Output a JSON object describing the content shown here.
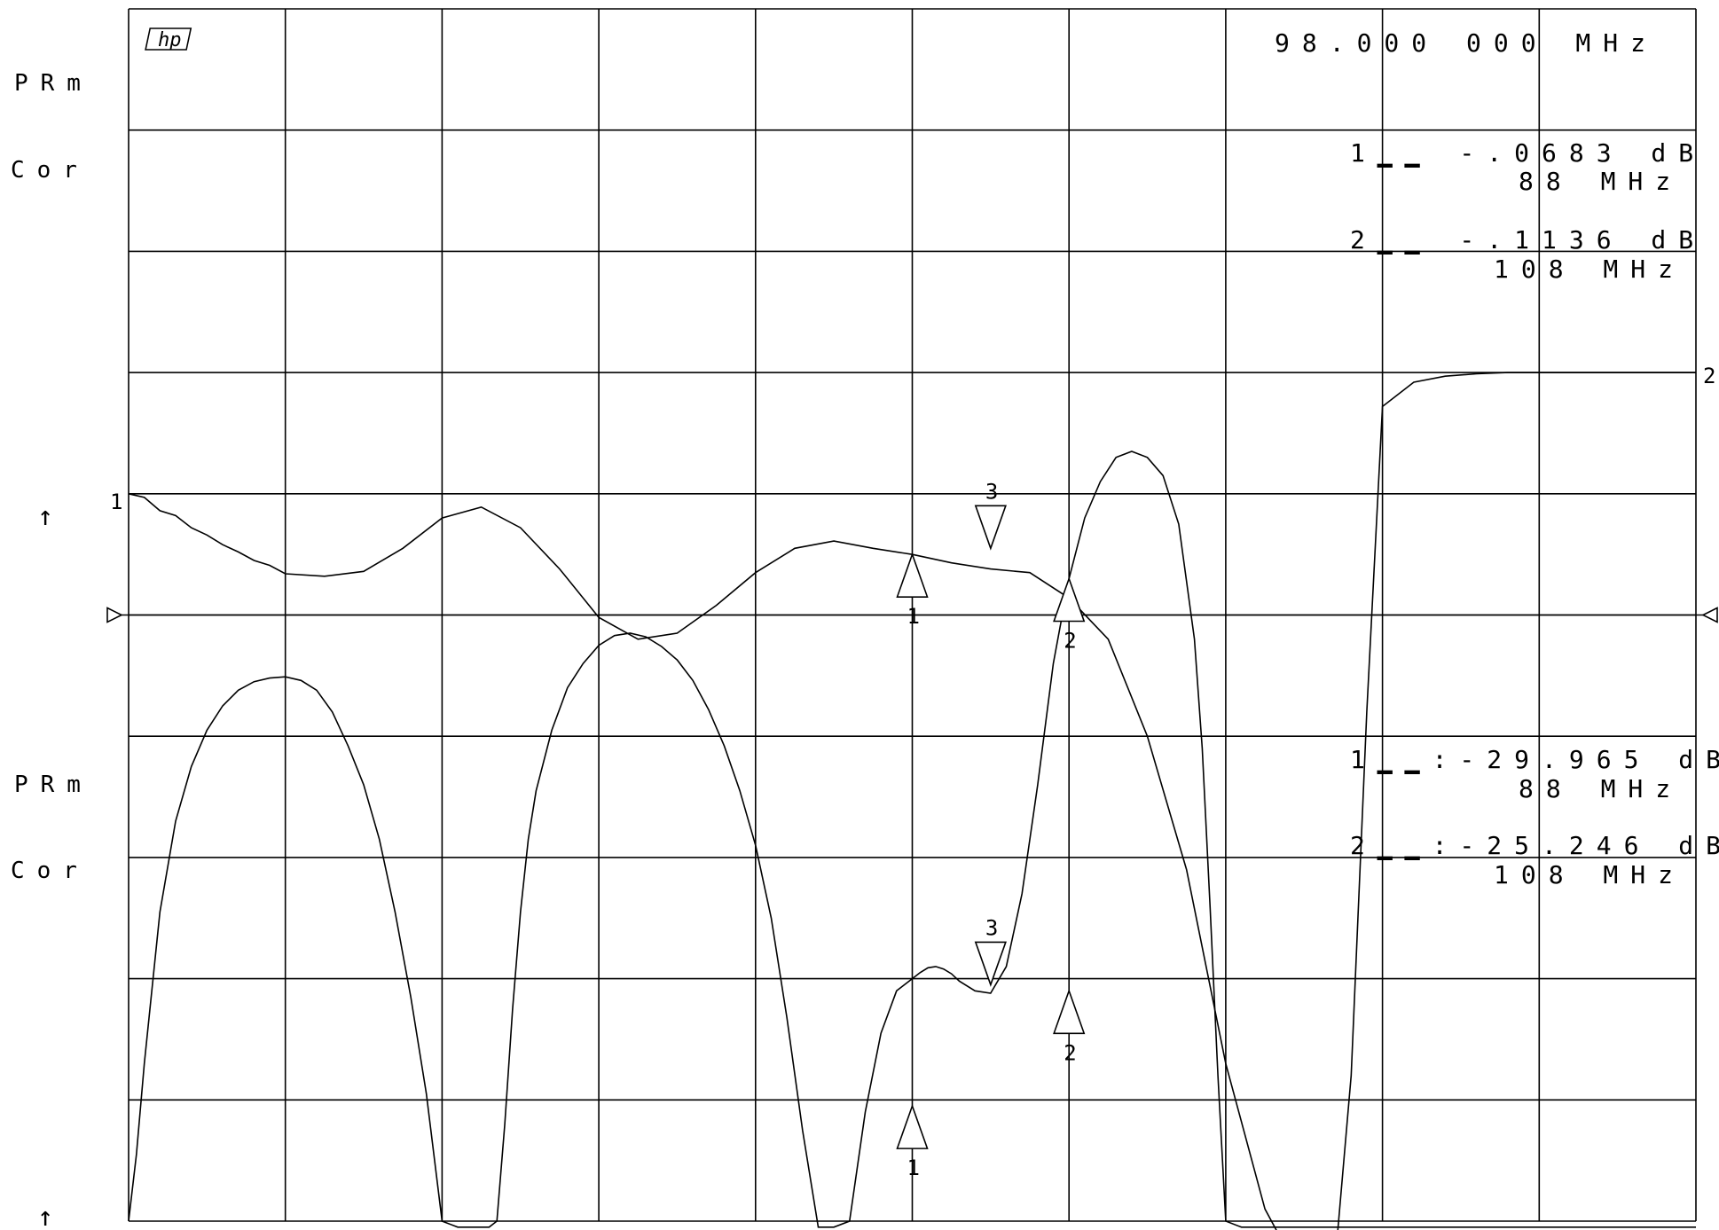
{
  "instrument": {
    "logo_text": "hp",
    "center_frequency": "98.000 000 MHz",
    "upper_channel": {
      "label1": "PRm",
      "label2": "Cor"
    },
    "lower_channel": {
      "label1": "PRm",
      "label2": "Cor"
    },
    "upper_markers": [
      {
        "line1": "1▁▁ -.0683 dB",
        "line2": "88 MHz"
      },
      {
        "line1": "2▁▁ -.1136 dB",
        "line2": "108 MHz"
      }
    ],
    "lower_markers": [
      {
        "line1": "1▁▁:-29.965 dB",
        "line2": "88 MHz"
      },
      {
        "line1": "2▁▁:-25.246 dB",
        "line2": "108 MHz"
      }
    ],
    "trace_labels": {
      "trace1": "1",
      "trace2": "2"
    },
    "marker_glyphs": {
      "m1": "1",
      "m2": "2",
      "m3": "3"
    },
    "reference_arrow": "↑"
  },
  "chart_data": {
    "type": "line",
    "grid": true,
    "x_divisions": 10,
    "y_divisions": 10,
    "series": [
      {
        "x": [
          0,
          0.1,
          0.2,
          0.3,
          0.4,
          0.5,
          0.6,
          0.7,
          0.8,
          0.9,
          1,
          1.25,
          1.5,
          1.75,
          2,
          2.25,
          2.5,
          2.75,
          3,
          3.25,
          3.5,
          3.75,
          4,
          4.25,
          4.5,
          4.75,
          5,
          5.25,
          5.5,
          5.75,
          6,
          6.25,
          6.5,
          6.75,
          7,
          7.25,
          7.5,
          7.6,
          7.7,
          7.8,
          7.9,
          8,
          8.2,
          8.4,
          8.6,
          8.8,
          9,
          9.5,
          10
        ],
        "y": [
          6.0,
          5.97,
          5.86,
          5.82,
          5.72,
          5.66,
          5.58,
          5.52,
          5.45,
          5.41,
          5.34,
          5.32,
          5.36,
          5.55,
          5.8,
          5.89,
          5.72,
          5.38,
          4.98,
          4.8,
          4.85,
          5.08,
          5.35,
          5.55,
          5.61,
          5.55,
          5.5,
          5.43,
          5.38,
          5.35,
          5.14,
          4.8,
          4.0,
          2.9,
          1.3,
          0.1,
          -0.5,
          -0.5,
          -0.3,
          1.2,
          4.2,
          6.72,
          6.92,
          6.97,
          6.99,
          7.0,
          7.0,
          7.0,
          7.0
        ]
      },
      {
        "x": [
          0,
          0.05,
          0.1,
          0.2,
          0.3,
          0.4,
          0.5,
          0.6,
          0.7,
          0.8,
          0.9,
          1,
          1.1,
          1.2,
          1.3,
          1.4,
          1.5,
          1.6,
          1.7,
          1.8,
          1.9,
          2,
          2.1,
          2.2,
          2.3,
          2.35,
          2.4,
          2.45,
          2.5,
          2.55,
          2.6,
          2.7,
          2.8,
          2.9,
          3,
          3.1,
          3.2,
          3.3,
          3.4,
          3.5,
          3.6,
          3.7,
          3.8,
          3.9,
          4,
          4.1,
          4.2,
          4.3,
          4.4,
          4.5,
          4.6,
          4.7,
          4.8,
          4.9,
          5,
          5.05,
          5.1,
          5.15,
          5.2,
          5.25,
          5.3,
          5.4,
          5.5,
          5.6,
          5.7,
          5.8,
          5.9,
          6,
          6.1,
          6.2,
          6.3,
          6.4,
          6.5,
          6.6,
          6.7,
          6.8,
          6.85,
          6.9,
          6.95,
          7.0,
          7.1,
          7.2,
          7.3,
          7.4,
          7.5,
          8,
          9,
          10
        ],
        "y": [
          0.0,
          0.55,
          1.3,
          2.55,
          3.3,
          3.75,
          4.05,
          4.25,
          4.38,
          4.45,
          4.48,
          4.49,
          4.46,
          4.38,
          4.2,
          3.92,
          3.6,
          3.15,
          2.55,
          1.85,
          1.05,
          0.0,
          -0.05,
          -0.05,
          -0.05,
          0.0,
          0.8,
          1.75,
          2.55,
          3.15,
          3.55,
          4.05,
          4.4,
          4.6,
          4.75,
          4.83,
          4.85,
          4.82,
          4.74,
          4.63,
          4.46,
          4.22,
          3.92,
          3.55,
          3.1,
          2.5,
          1.68,
          0.75,
          -0.05,
          -0.05,
          0.0,
          0.9,
          1.55,
          1.9,
          2.0,
          2.05,
          2.09,
          2.1,
          2.08,
          2.04,
          1.98,
          1.9,
          1.88,
          2.1,
          2.7,
          3.6,
          4.6,
          5.3,
          5.8,
          6.1,
          6.3,
          6.35,
          6.3,
          6.15,
          5.75,
          4.8,
          3.9,
          2.6,
          1.2,
          0.0,
          -0.05,
          -0.05,
          -0.05,
          -0.05,
          -0.05,
          -0.05,
          -0.05,
          -0.05
        ]
      }
    ],
    "markers": [
      {
        "trace": 1,
        "id": "1",
        "x": 5.0,
        "y": 5.5,
        "dir": "up"
      },
      {
        "trace": 1,
        "id": "2",
        "x": 6.0,
        "y": 5.3,
        "dir": "up"
      },
      {
        "trace": 1,
        "id": "3",
        "x": 5.5,
        "y": 5.55,
        "dir": "down"
      },
      {
        "trace": 2,
        "id": "1",
        "x": 5.0,
        "y": 0.95,
        "dir": "up"
      },
      {
        "trace": 2,
        "id": "2",
        "x": 6.0,
        "y": 1.9,
        "dir": "up"
      },
      {
        "trace": 2,
        "id": "3",
        "x": 5.5,
        "y": 1.95,
        "dir": "down"
      }
    ],
    "reference_level": 5
  }
}
